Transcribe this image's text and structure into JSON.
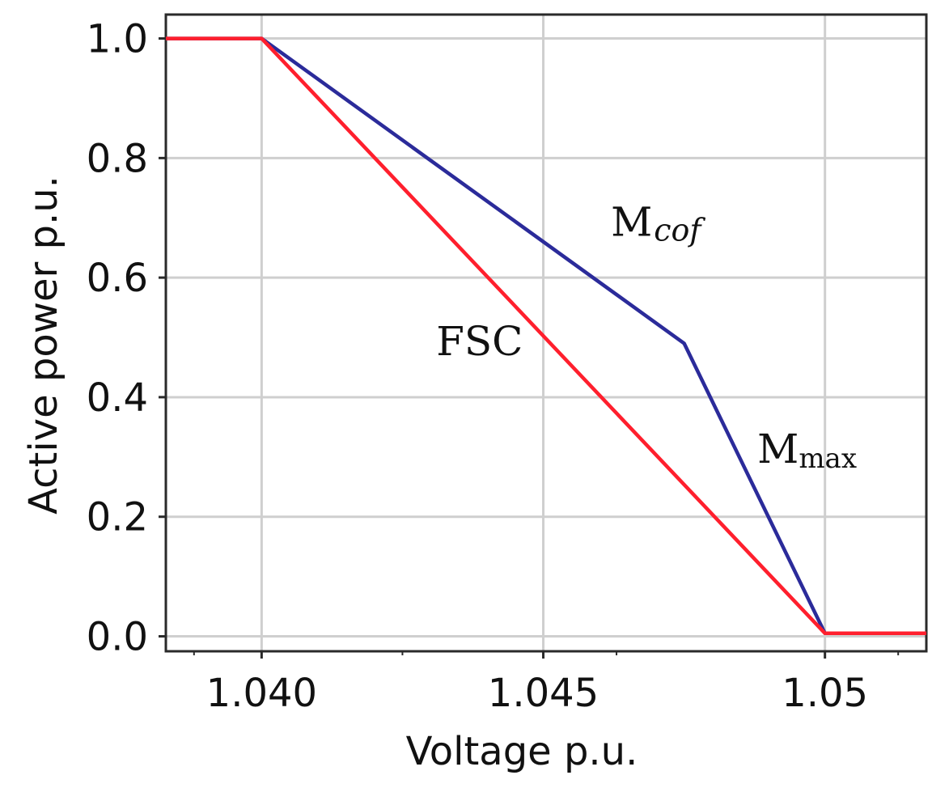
{
  "chart_data": {
    "type": "line",
    "title": "",
    "xlabel": "Voltage p.u.",
    "ylabel": "Active power p.u.",
    "xlim": [
      1.0383,
      1.0518
    ],
    "ylim": [
      -0.025,
      1.04
    ],
    "x_ticks": [
      {
        "value": 1.04,
        "label": "1.040"
      },
      {
        "value": 1.045,
        "label": "1.045"
      },
      {
        "value": 1.05,
        "label": "1.05"
      }
    ],
    "y_ticks": [
      {
        "value": 0.0,
        "label": "0.0"
      },
      {
        "value": 0.2,
        "label": "0.2"
      },
      {
        "value": 0.4,
        "label": "0.4"
      },
      {
        "value": 0.6,
        "label": "0.6"
      },
      {
        "value": 0.8,
        "label": "0.8"
      },
      {
        "value": 1.0,
        "label": "1.0"
      }
    ],
    "x_minor_ticks": [
      1.0388,
      1.0425,
      1.0463,
      1.05,
      1.0513
    ],
    "grid": true,
    "series": [
      {
        "color": "#2b2b9a",
        "points": [
          [
            1.0383,
            1.0
          ],
          [
            1.04,
            1.0
          ],
          [
            1.0475,
            0.49
          ],
          [
            1.05,
            0.005
          ],
          [
            1.0518,
            0.005
          ]
        ]
      },
      {
        "color": "#ff1f2d",
        "points": [
          [
            1.0383,
            1.0
          ],
          [
            1.04,
            1.0
          ],
          [
            1.05,
            0.005
          ],
          [
            1.0518,
            0.005
          ]
        ]
      }
    ],
    "annotations": [
      {
        "text": "M",
        "italic_sub": "cof",
        "x": 1.0462,
        "y": 0.67
      },
      {
        "text": "FSC",
        "x": 1.0431,
        "y": 0.47
      },
      {
        "text": "M",
        "sub": "max",
        "x": 1.0488,
        "y": 0.29
      }
    ]
  }
}
